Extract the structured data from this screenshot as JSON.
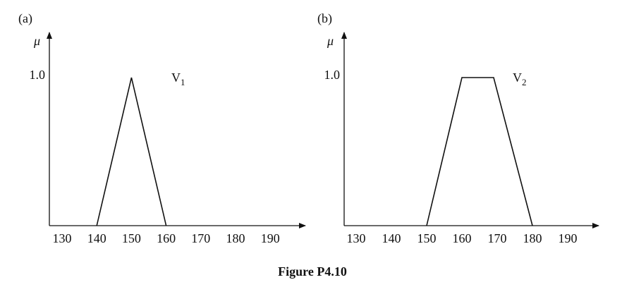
{
  "caption": "Figure P4.10",
  "chart_data": [
    {
      "type": "line",
      "panel_label": "(a)",
      "ylabel": "μ",
      "y_tick_label": "1.0",
      "y_tick_value": 1.0,
      "xticks": [
        130,
        140,
        150,
        160,
        170,
        180,
        190
      ],
      "xlim": [
        130,
        190
      ],
      "ylim": [
        0,
        1
      ],
      "series": [
        {
          "label_main": "V",
          "label_sub": "1",
          "x": [
            140,
            150,
            160
          ],
          "y": [
            0,
            1,
            0
          ]
        }
      ]
    },
    {
      "type": "line",
      "panel_label": "(b)",
      "ylabel": "μ",
      "y_tick_label": "1.0",
      "y_tick_value": 1.0,
      "xticks": [
        130,
        140,
        150,
        160,
        170,
        180,
        190
      ],
      "xlim": [
        130,
        190
      ],
      "ylim": [
        0,
        1
      ],
      "series": [
        {
          "label_main": "V",
          "label_sub": "2",
          "x": [
            150,
            160,
            169,
            180
          ],
          "y": [
            0,
            1,
            1,
            0
          ]
        }
      ]
    }
  ]
}
